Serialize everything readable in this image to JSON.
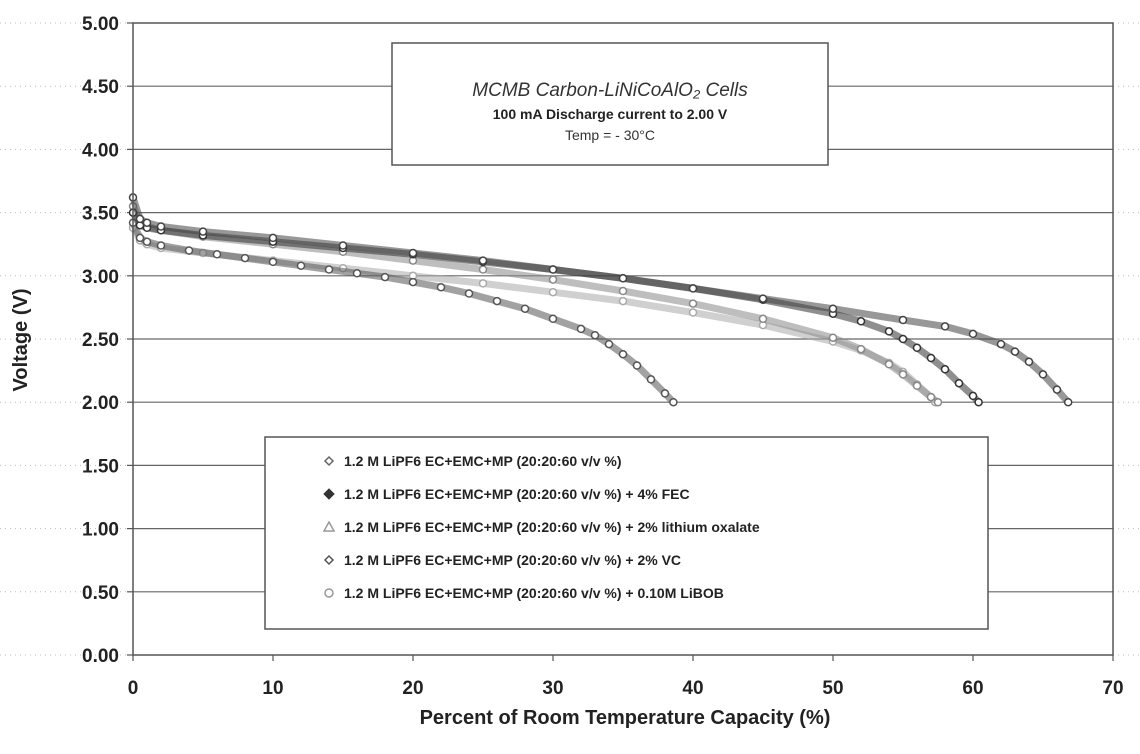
{
  "chart_data": {
    "type": "scatter",
    "title": "MCMB Carbon-LiNiCoAlO₂ Cells",
    "subtitle": "100 mA Discharge current to 2.00 V",
    "annotation": "Temp = - 30°C",
    "xlabel": "Percent of Room Temperature Capacity (%)",
    "ylabel": "Voltage (V)",
    "xlim": [
      0,
      70
    ],
    "ylim": [
      0,
      5
    ],
    "x_ticks": [
      "0",
      "10",
      "20",
      "30",
      "40",
      "50",
      "60",
      "70"
    ],
    "y_ticks": [
      "0.00",
      "0.50",
      "1.00",
      "1.50",
      "2.00",
      "2.50",
      "3.00",
      "3.50",
      "4.00",
      "4.50",
      "5.00"
    ],
    "grid": "horizontal",
    "legend_position": "lower-center",
    "series": [
      {
        "name": "1.2 M LiPF6  EC+EMC+MP  (20:20:60  v/v %)",
        "color": "#555555",
        "x": [
          0,
          0.5,
          1,
          2,
          4,
          6,
          8,
          10,
          12,
          14,
          16,
          18,
          20,
          22,
          24,
          26,
          28,
          30,
          32,
          33,
          34,
          35,
          36,
          37,
          38,
          38.6
        ],
        "y": [
          3.42,
          3.3,
          3.27,
          3.24,
          3.2,
          3.17,
          3.14,
          3.11,
          3.08,
          3.05,
          3.02,
          2.99,
          2.95,
          2.91,
          2.86,
          2.8,
          2.74,
          2.66,
          2.58,
          2.53,
          2.46,
          2.38,
          2.29,
          2.18,
          2.07,
          2.0
        ]
      },
      {
        "name": "1.2 M LiPF6  EC+EMC+MP  (20:20:60  v/v %) + 4% FEC",
        "color": "#333333",
        "x": [
          0,
          0.5,
          1,
          2,
          5,
          10,
          15,
          20,
          25,
          30,
          35,
          40,
          45,
          50,
          52,
          54,
          55,
          56,
          57,
          58,
          59,
          60,
          60.4
        ],
        "y": [
          3.5,
          3.4,
          3.38,
          3.36,
          3.32,
          3.27,
          3.22,
          3.17,
          3.11,
          3.05,
          2.98,
          2.9,
          2.81,
          2.7,
          2.64,
          2.56,
          2.5,
          2.43,
          2.35,
          2.26,
          2.15,
          2.05,
          2.0
        ]
      },
      {
        "name": "1.2 M LiPF6  EC+EMC+MP  (20:20:60  v/v %) + 2% lithium oxalate",
        "color": "#888888",
        "x": [
          0,
          0.5,
          1,
          2,
          5,
          10,
          15,
          20,
          25,
          30,
          35,
          40,
          45,
          50,
          52,
          54,
          55,
          56,
          57,
          57.5
        ],
        "y": [
          3.55,
          3.42,
          3.39,
          3.36,
          3.31,
          3.25,
          3.19,
          3.12,
          3.05,
          2.97,
          2.88,
          2.78,
          2.66,
          2.51,
          2.42,
          2.3,
          2.22,
          2.13,
          2.04,
          2.0
        ]
      },
      {
        "name": "1.2 M LiPF6  EC+EMC+MP  (20:20:60  v/v %) + 2% VC",
        "color": "#444444",
        "x": [
          0,
          0.5,
          1,
          2,
          5,
          10,
          15,
          20,
          25,
          30,
          35,
          40,
          45,
          50,
          55,
          58,
          60,
          62,
          63,
          64,
          65,
          66,
          66.8
        ],
        "y": [
          3.62,
          3.45,
          3.42,
          3.39,
          3.35,
          3.3,
          3.24,
          3.18,
          3.12,
          3.05,
          2.98,
          2.9,
          2.82,
          2.74,
          2.65,
          2.6,
          2.54,
          2.46,
          2.4,
          2.32,
          2.22,
          2.1,
          2.0
        ]
      },
      {
        "name": "1.2 M LiPF6  EC+EMC+MP  (20:20:60  v/v %) + 0.10M LiBOB",
        "color": "#aaaaaa",
        "x": [
          0,
          0.5,
          1,
          2,
          5,
          10,
          15,
          20,
          25,
          30,
          35,
          40,
          45,
          50,
          52,
          54,
          55,
          56,
          57,
          57.3
        ],
        "y": [
          3.38,
          3.28,
          3.25,
          3.22,
          3.18,
          3.12,
          3.06,
          3.0,
          2.94,
          2.87,
          2.8,
          2.71,
          2.61,
          2.48,
          2.41,
          2.31,
          2.24,
          2.14,
          2.04,
          2.0
        ]
      }
    ]
  }
}
